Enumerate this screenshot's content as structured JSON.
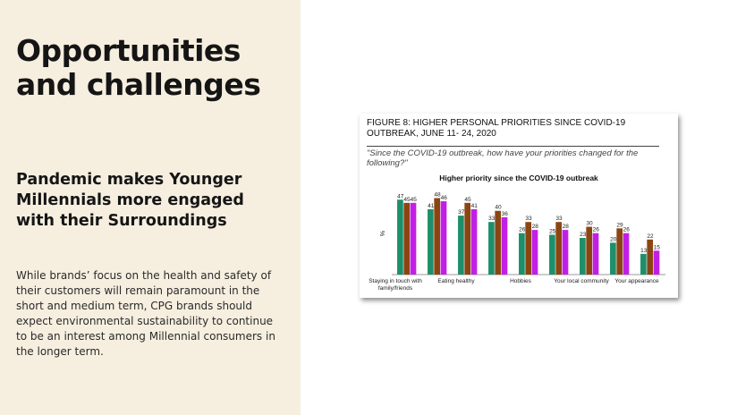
{
  "slide": {
    "title": "Opportunities and challenges",
    "subheading": "Pandemic makes Younger Millennials more engaged with their Surroundings",
    "body": "While brands’ focus on the health and safety of their customers will remain paramount in the short and medium term, CPG brands should expect environmental sustainability to continue to be an interest among Millennial consumers in the longer term.",
    "colors": {
      "left_panel_bg": "#f6efe0",
      "text": "#151515"
    }
  },
  "figure": {
    "title": "FIGURE 8: HIGHER PERSONAL PRIORITIES SINCE COVID-19 OUTBREAK, JUNE 11- 24, 2020",
    "question": "\"Since the COVID-19 outbreak, how have your priorities changed for the following?\""
  },
  "chart_data": {
    "type": "bar",
    "title": "Higher priority since the COVID-19 outbreak",
    "ylabel": "%",
    "xlabel": "",
    "ylim": [
      0,
      55
    ],
    "grid": false,
    "categories": [
      [
        "Staying in touch with",
        "family/friends"
      ],
      [
        "Eating healthy"
      ],
      [
        "Hobbies"
      ],
      [
        "Your local community"
      ],
      [
        "Your appearance"
      ]
    ],
    "colors": [
      "#1d8f6a",
      "#8b4513",
      "#c21fe6"
    ],
    "series": [
      {
        "values": [
          47,
          37,
          33,
          25,
          20
        ]
      },
      {
        "values": [
          45,
          45,
          40,
          33,
          29
        ]
      },
      {
        "values": [
          45,
          41,
          36,
          28,
          26
        ]
      }
    ],
    "extra_groups_note": "values per visible group order below",
    "groups": [
      [
        47,
        45,
        45
      ],
      [
        41,
        48,
        46
      ],
      [
        37,
        45,
        41
      ],
      [
        33,
        40,
        36
      ],
      [
        26,
        33,
        28
      ],
      [
        25,
        33,
        28
      ],
      [
        23,
        30,
        26
      ],
      [
        20,
        29,
        26
      ],
      [
        13,
        22,
        15
      ]
    ]
  }
}
